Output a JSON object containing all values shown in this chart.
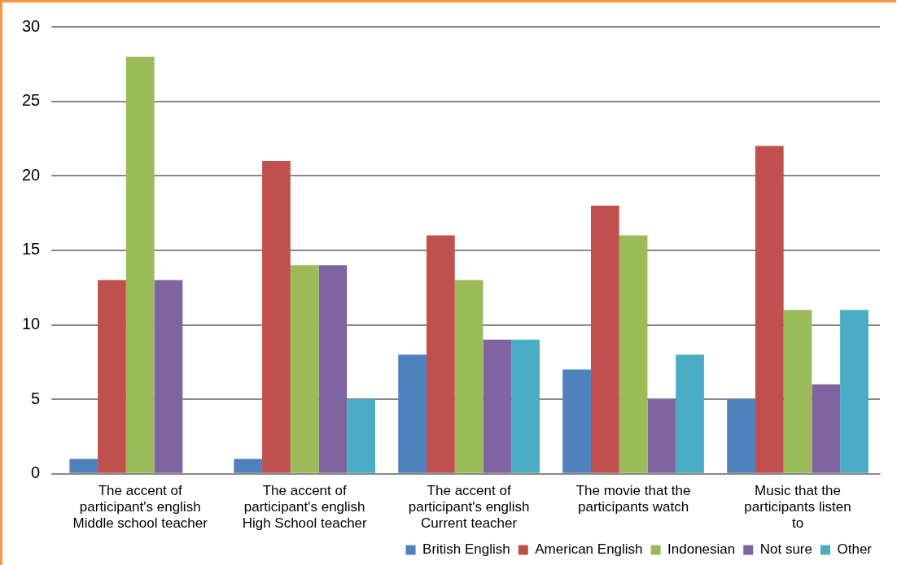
{
  "chart_data": {
    "type": "bar",
    "categories": [
      "The accent of participant's english Middle school teacher",
      "The accent of participant's english High School teacher",
      "The accent of participant's english Current teacher",
      "The movie that the participants watch",
      "Music that the participants listen to"
    ],
    "series": [
      {
        "name": "British English",
        "color": "#4f81bd",
        "values": [
          1,
          1,
          8,
          7,
          5
        ]
      },
      {
        "name": "American English",
        "color": "#c0504d",
        "values": [
          13,
          21,
          16,
          18,
          22
        ]
      },
      {
        "name": "Indonesian",
        "color": "#9bbb59",
        "values": [
          28,
          14,
          13,
          16,
          11
        ]
      },
      {
        "name": "Not sure",
        "color": "#8064a2",
        "values": [
          13,
          14,
          9,
          5,
          6
        ]
      },
      {
        "name": "Other",
        "color": "#4bacc6",
        "values": [
          0,
          5,
          9,
          8,
          11
        ]
      }
    ],
    "ylim": [
      0,
      30
    ],
    "yticks": [
      0,
      5,
      10,
      15,
      20,
      25,
      30
    ],
    "grid": "y",
    "legend": "bottom right"
  }
}
